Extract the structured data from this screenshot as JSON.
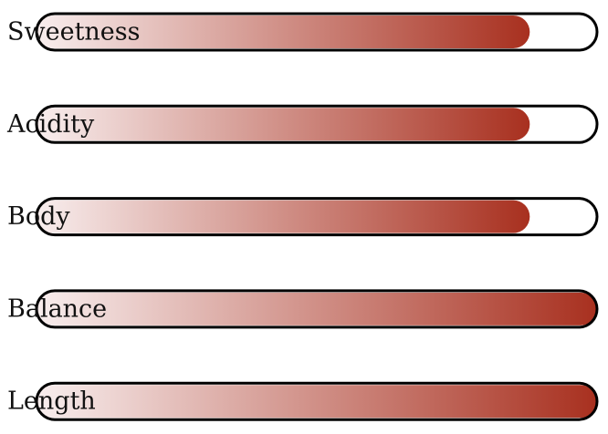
{
  "chart_data": {
    "type": "bar",
    "orientation": "horizontal",
    "categories": [
      "Sweetness",
      "Acidity",
      "Body",
      "Balance",
      "Length"
    ],
    "values": [
      88,
      88,
      88,
      100,
      100
    ],
    "xlim": [
      0,
      100
    ],
    "color": "#a8301f"
  }
}
